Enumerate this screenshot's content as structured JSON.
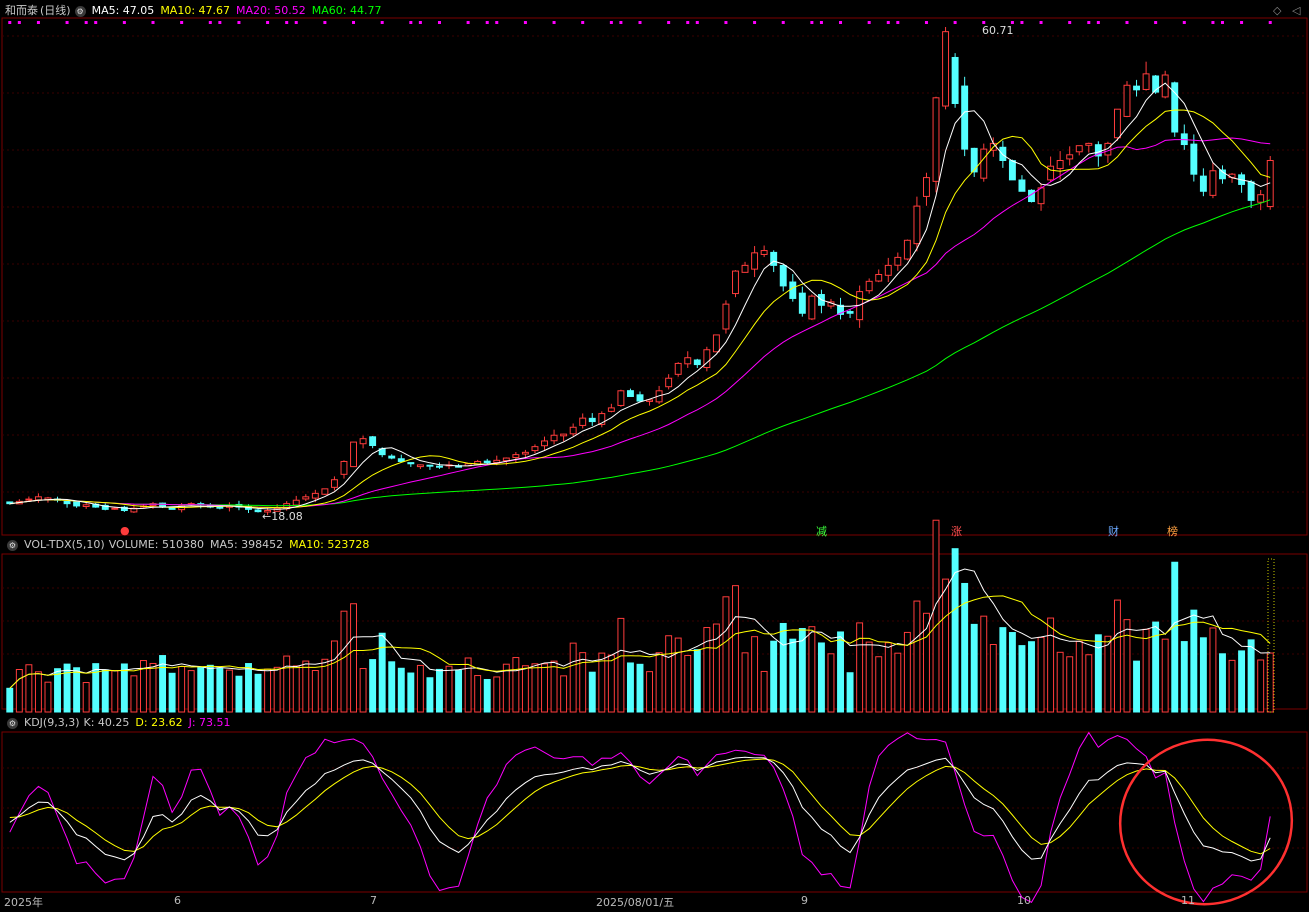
{
  "stock": {
    "name": "和而泰",
    "period": "(日线)"
  },
  "price_panel": {
    "ma5": "MA5: 47.05",
    "ma10": "MA10: 47.67",
    "ma20": "MA20: 50.52",
    "ma60": "MA60: 44.77",
    "high_label": "60.71",
    "low_label": "18.08"
  },
  "volume_panel": {
    "title": "VOL-TDX(5,10)",
    "volume": "VOLUME: 510380",
    "ma5": "MA5: 398452",
    "ma10": "MA10: 523728"
  },
  "kdj_panel": {
    "title": "KDJ(9,3,3)",
    "k": "K: 40.25",
    "d": "D: 23.62",
    "j": "J: 73.51"
  },
  "events": [
    "减",
    "涨",
    "财",
    "榜"
  ],
  "x_axis_labels": [
    "2025年",
    "6",
    "7",
    "2025/08/01/五",
    "9",
    "10",
    "11"
  ],
  "colors": {
    "up": "#ff3c3c",
    "down": "#54ffff",
    "ma5": "#ffffff",
    "ma10": "#ffff00",
    "ma20": "#ff00ff",
    "ma60": "#00ff00",
    "grid": "#3a0000",
    "border": "#7a0000"
  },
  "chart_data": {
    "type": "candlestick",
    "series": {
      "close": [
        18.9,
        19.1,
        19.3,
        19.5,
        19.4,
        19.2,
        18.9,
        18.7,
        18.8,
        18.6,
        18.4,
        18.5,
        18.3,
        18.5,
        18.7,
        18.9,
        18.6,
        18.4,
        18.7,
        18.9,
        18.8,
        18.6,
        18.5,
        18.7,
        18.6,
        18.4,
        18.2,
        18.3,
        18.5,
        18.9,
        19.2,
        19.5,
        19.8,
        20.2,
        21.0,
        22.6,
        24.3,
        24.6,
        24.0,
        23.2,
        22.9,
        22.6,
        22.4,
        22.3,
        22.2,
        22.1,
        22.3,
        22.1,
        22.4,
        22.6,
        22.5,
        22.7,
        22.9,
        23.2,
        23.4,
        23.9,
        24.4,
        24.9,
        25.0,
        25.6,
        26.4,
        26.1,
        26.8,
        27.3,
        28.8,
        28.3,
        27.9,
        28.0,
        28.8,
        29.9,
        31.2,
        31.7,
        31.1,
        32.4,
        33.7,
        36.4,
        39.3,
        39.8,
        40.9,
        41.1,
        39.8,
        38.0,
        36.9,
        35.6,
        37.1,
        36.3,
        36.6,
        35.5,
        35.6,
        37.5,
        38.4,
        39.0,
        39.8,
        40.5,
        42.0,
        45.0,
        47.5,
        54.5,
        60.3,
        54.0,
        50.0,
        48.0,
        50.0,
        50.5,
        49.0,
        47.3,
        46.3,
        45.4,
        46.6,
        48.5,
        49.0,
        49.5,
        50.3,
        50.5,
        49.4,
        50.5,
        53.5,
        55.6,
        55.2,
        56.6,
        55.0,
        56.5,
        51.5,
        50.4,
        47.8,
        46.3,
        48.1,
        47.4,
        47.8,
        46.9,
        45.5,
        46.0,
        49.0
      ]
    },
    "price_ticks": {
      "high": 60.71,
      "low": 18.08
    },
    "indicators": {
      "ma5": 47.05,
      "ma10": 47.67,
      "ma20": 50.52,
      "ma60": 44.77,
      "volume": 510380,
      "vol_ma5": 398452,
      "vol_ma10": 523728,
      "k": 40.25,
      "d": 23.62,
      "j": 73.51
    },
    "x_labels": [
      "2025年",
      "6",
      "7",
      "2025/08/01/五",
      "9",
      "10",
      "11"
    ]
  }
}
